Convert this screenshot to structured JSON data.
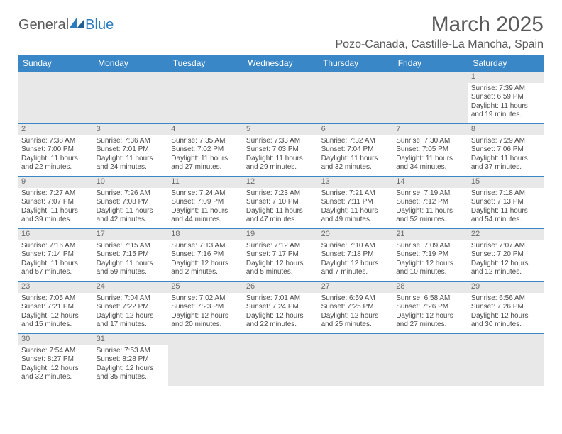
{
  "logo": {
    "text1": "General",
    "text2": "Blue",
    "shape_color": "#2b7bbf"
  },
  "title": "March 2025",
  "location": "Pozo-Canada, Castille-La Mancha, Spain",
  "colors": {
    "header_bg": "#3a87c8",
    "header_text": "#ffffff",
    "cell_border": "#3a87c8",
    "daynum_bg": "#e8e8e8",
    "text": "#4a4a4a"
  },
  "weekdays": [
    "Sunday",
    "Monday",
    "Tuesday",
    "Wednesday",
    "Thursday",
    "Friday",
    "Saturday"
  ],
  "weeks": [
    [
      null,
      null,
      null,
      null,
      null,
      null,
      {
        "n": "1",
        "sr": "Sunrise: 7:39 AM",
        "ss": "Sunset: 6:59 PM",
        "dl": "Daylight: 11 hours and 19 minutes."
      }
    ],
    [
      {
        "n": "2",
        "sr": "Sunrise: 7:38 AM",
        "ss": "Sunset: 7:00 PM",
        "dl": "Daylight: 11 hours and 22 minutes."
      },
      {
        "n": "3",
        "sr": "Sunrise: 7:36 AM",
        "ss": "Sunset: 7:01 PM",
        "dl": "Daylight: 11 hours and 24 minutes."
      },
      {
        "n": "4",
        "sr": "Sunrise: 7:35 AM",
        "ss": "Sunset: 7:02 PM",
        "dl": "Daylight: 11 hours and 27 minutes."
      },
      {
        "n": "5",
        "sr": "Sunrise: 7:33 AM",
        "ss": "Sunset: 7:03 PM",
        "dl": "Daylight: 11 hours and 29 minutes."
      },
      {
        "n": "6",
        "sr": "Sunrise: 7:32 AM",
        "ss": "Sunset: 7:04 PM",
        "dl": "Daylight: 11 hours and 32 minutes."
      },
      {
        "n": "7",
        "sr": "Sunrise: 7:30 AM",
        "ss": "Sunset: 7:05 PM",
        "dl": "Daylight: 11 hours and 34 minutes."
      },
      {
        "n": "8",
        "sr": "Sunrise: 7:29 AM",
        "ss": "Sunset: 7:06 PM",
        "dl": "Daylight: 11 hours and 37 minutes."
      }
    ],
    [
      {
        "n": "9",
        "sr": "Sunrise: 7:27 AM",
        "ss": "Sunset: 7:07 PM",
        "dl": "Daylight: 11 hours and 39 minutes."
      },
      {
        "n": "10",
        "sr": "Sunrise: 7:26 AM",
        "ss": "Sunset: 7:08 PM",
        "dl": "Daylight: 11 hours and 42 minutes."
      },
      {
        "n": "11",
        "sr": "Sunrise: 7:24 AM",
        "ss": "Sunset: 7:09 PM",
        "dl": "Daylight: 11 hours and 44 minutes."
      },
      {
        "n": "12",
        "sr": "Sunrise: 7:23 AM",
        "ss": "Sunset: 7:10 PM",
        "dl": "Daylight: 11 hours and 47 minutes."
      },
      {
        "n": "13",
        "sr": "Sunrise: 7:21 AM",
        "ss": "Sunset: 7:11 PM",
        "dl": "Daylight: 11 hours and 49 minutes."
      },
      {
        "n": "14",
        "sr": "Sunrise: 7:19 AM",
        "ss": "Sunset: 7:12 PM",
        "dl": "Daylight: 11 hours and 52 minutes."
      },
      {
        "n": "15",
        "sr": "Sunrise: 7:18 AM",
        "ss": "Sunset: 7:13 PM",
        "dl": "Daylight: 11 hours and 54 minutes."
      }
    ],
    [
      {
        "n": "16",
        "sr": "Sunrise: 7:16 AM",
        "ss": "Sunset: 7:14 PM",
        "dl": "Daylight: 11 hours and 57 minutes."
      },
      {
        "n": "17",
        "sr": "Sunrise: 7:15 AM",
        "ss": "Sunset: 7:15 PM",
        "dl": "Daylight: 11 hours and 59 minutes."
      },
      {
        "n": "18",
        "sr": "Sunrise: 7:13 AM",
        "ss": "Sunset: 7:16 PM",
        "dl": "Daylight: 12 hours and 2 minutes."
      },
      {
        "n": "19",
        "sr": "Sunrise: 7:12 AM",
        "ss": "Sunset: 7:17 PM",
        "dl": "Daylight: 12 hours and 5 minutes."
      },
      {
        "n": "20",
        "sr": "Sunrise: 7:10 AM",
        "ss": "Sunset: 7:18 PM",
        "dl": "Daylight: 12 hours and 7 minutes."
      },
      {
        "n": "21",
        "sr": "Sunrise: 7:09 AM",
        "ss": "Sunset: 7:19 PM",
        "dl": "Daylight: 12 hours and 10 minutes."
      },
      {
        "n": "22",
        "sr": "Sunrise: 7:07 AM",
        "ss": "Sunset: 7:20 PM",
        "dl": "Daylight: 12 hours and 12 minutes."
      }
    ],
    [
      {
        "n": "23",
        "sr": "Sunrise: 7:05 AM",
        "ss": "Sunset: 7:21 PM",
        "dl": "Daylight: 12 hours and 15 minutes."
      },
      {
        "n": "24",
        "sr": "Sunrise: 7:04 AM",
        "ss": "Sunset: 7:22 PM",
        "dl": "Daylight: 12 hours and 17 minutes."
      },
      {
        "n": "25",
        "sr": "Sunrise: 7:02 AM",
        "ss": "Sunset: 7:23 PM",
        "dl": "Daylight: 12 hours and 20 minutes."
      },
      {
        "n": "26",
        "sr": "Sunrise: 7:01 AM",
        "ss": "Sunset: 7:24 PM",
        "dl": "Daylight: 12 hours and 22 minutes."
      },
      {
        "n": "27",
        "sr": "Sunrise: 6:59 AM",
        "ss": "Sunset: 7:25 PM",
        "dl": "Daylight: 12 hours and 25 minutes."
      },
      {
        "n": "28",
        "sr": "Sunrise: 6:58 AM",
        "ss": "Sunset: 7:26 PM",
        "dl": "Daylight: 12 hours and 27 minutes."
      },
      {
        "n": "29",
        "sr": "Sunrise: 6:56 AM",
        "ss": "Sunset: 7:26 PM",
        "dl": "Daylight: 12 hours and 30 minutes."
      }
    ],
    [
      {
        "n": "30",
        "sr": "Sunrise: 7:54 AM",
        "ss": "Sunset: 8:27 PM",
        "dl": "Daylight: 12 hours and 32 minutes."
      },
      {
        "n": "31",
        "sr": "Sunrise: 7:53 AM",
        "ss": "Sunset: 8:28 PM",
        "dl": "Daylight: 12 hours and 35 minutes."
      },
      null,
      null,
      null,
      null,
      null
    ]
  ]
}
